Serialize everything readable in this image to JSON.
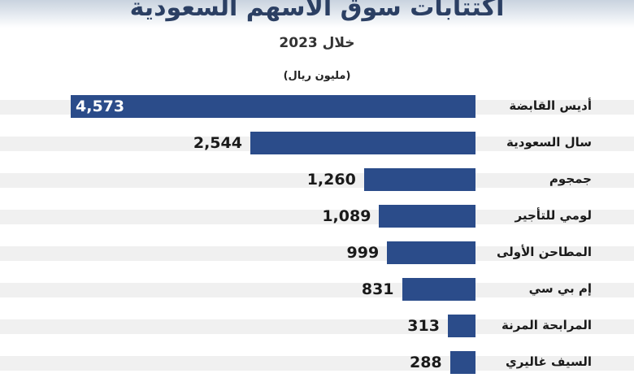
{
  "chart_data": {
    "type": "bar",
    "orientation": "horizontal",
    "title": "اكتتابات سوق الأسهم السعودية",
    "subtitle": "خلال 2023",
    "unit": "(مليون ريال)",
    "categories": [
      "أديس القابضة",
      "سال السعودية",
      "جمجوم",
      "لومي للتأجير",
      "المطاحن الأولى",
      "إم بي سي",
      "المرابحة المرنة",
      "السيف غاليري"
    ],
    "values": [
      4573,
      2544,
      1260,
      1089,
      999,
      831,
      313,
      288
    ],
    "value_labels": [
      "4,573",
      "2,544",
      "1,260",
      "1,089",
      "999",
      "831",
      "313",
      "288"
    ],
    "bar_color": "#2b4c8a",
    "xlim": [
      0,
      4573
    ]
  }
}
